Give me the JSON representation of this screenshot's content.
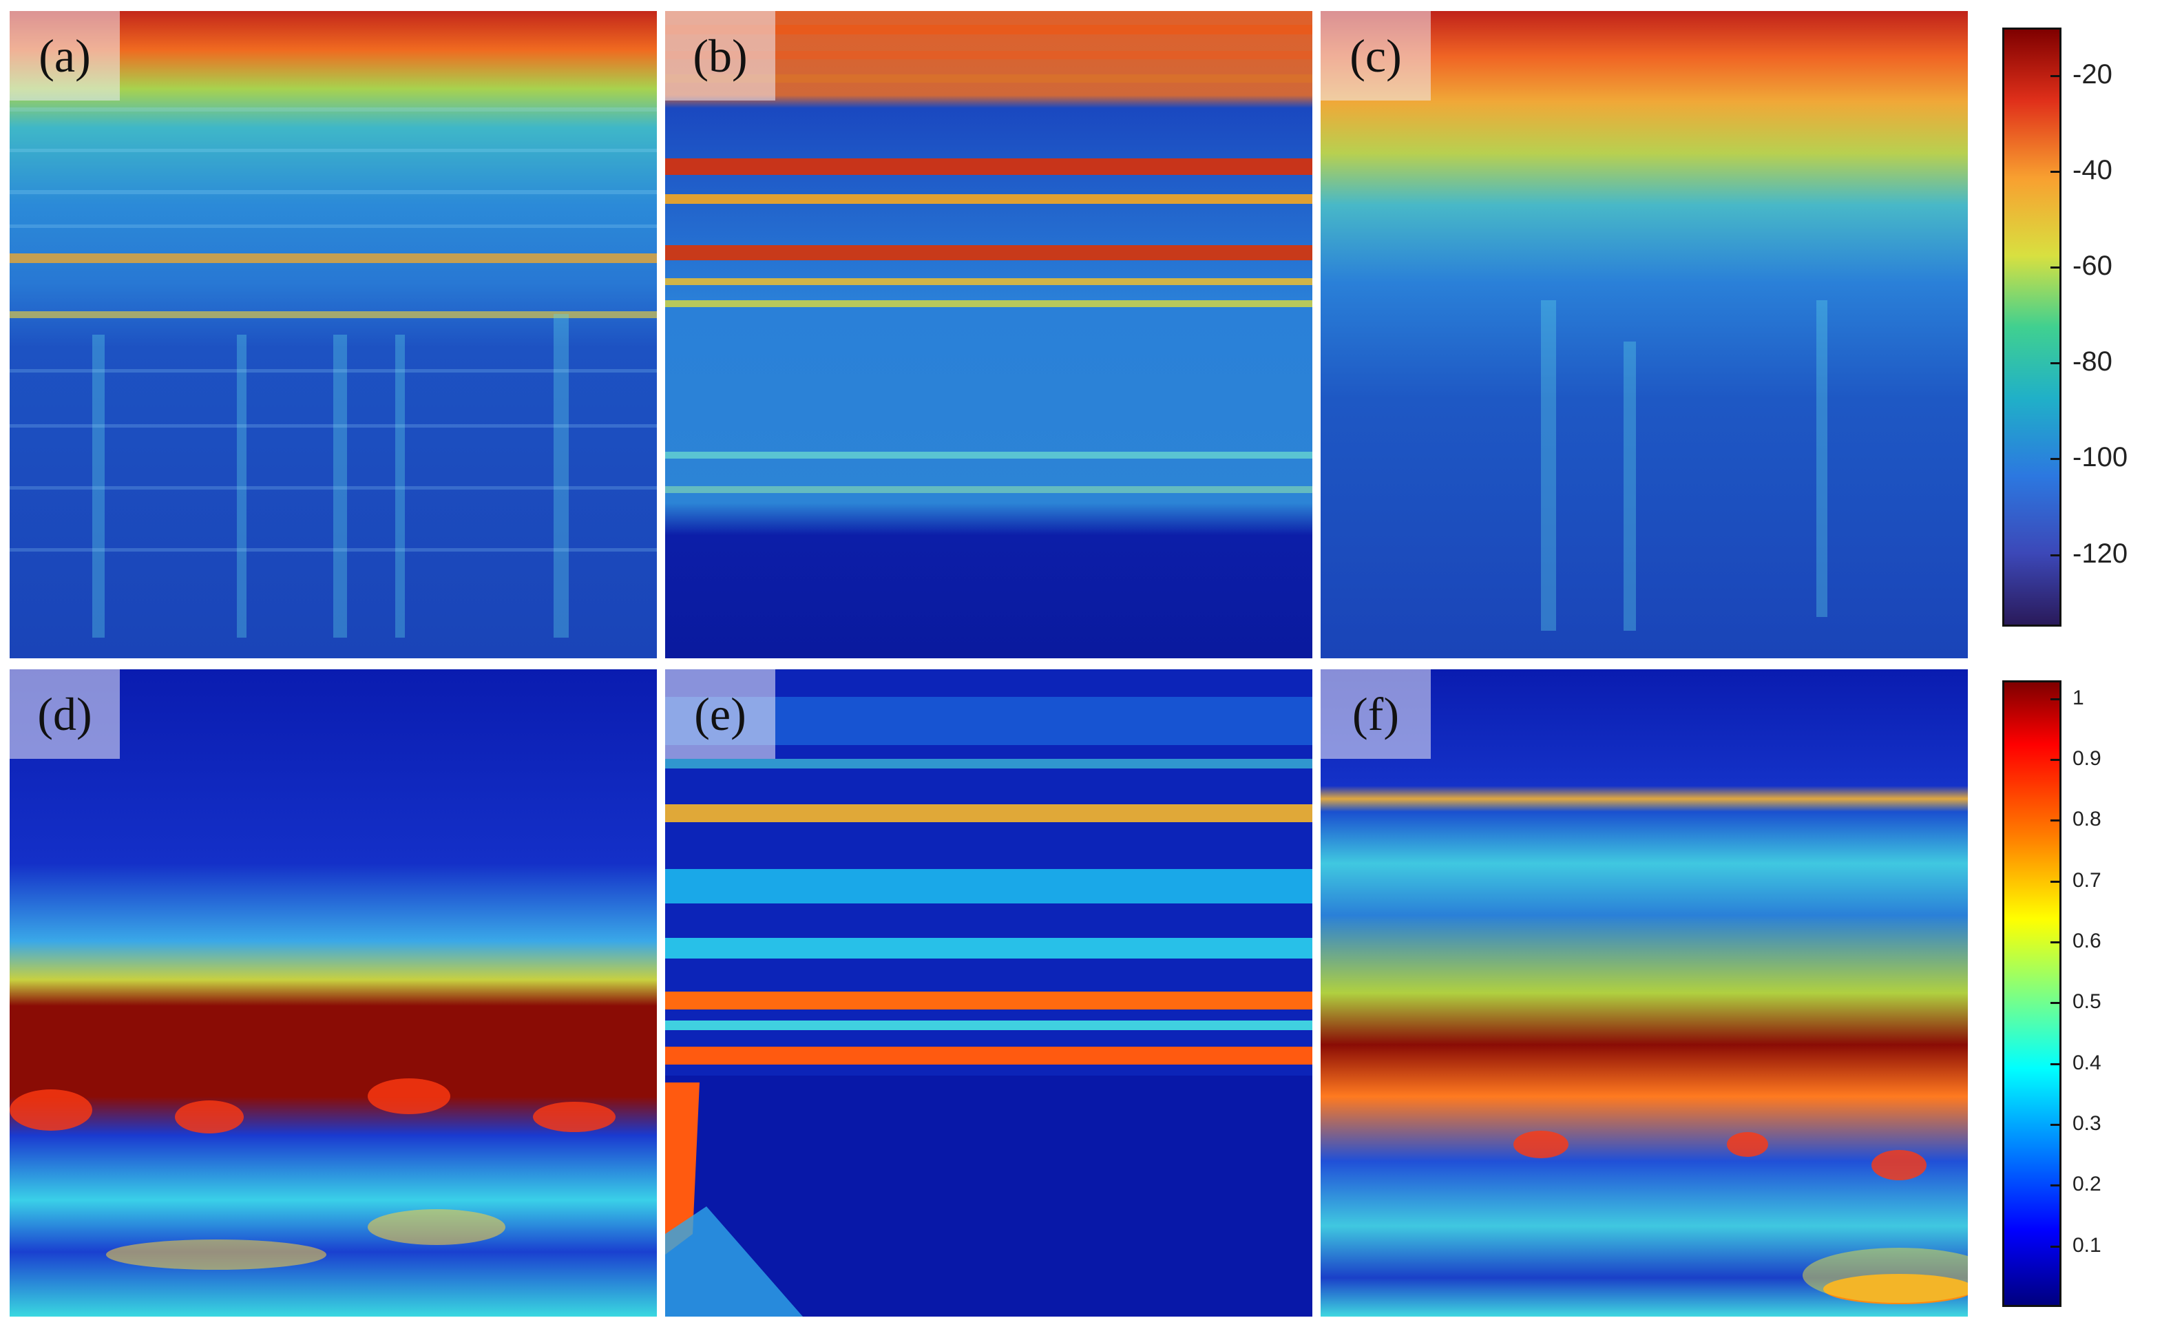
{
  "panels": [
    {
      "id": "a",
      "label": "(a)",
      "kind": "spectrogram"
    },
    {
      "id": "b",
      "label": "(b)",
      "kind": "spectrogram"
    },
    {
      "id": "c",
      "label": "(c)",
      "kind": "spectrogram"
    },
    {
      "id": "d",
      "label": "(d)",
      "kind": "scalogram"
    },
    {
      "id": "e",
      "label": "(e)",
      "kind": "scalogram"
    },
    {
      "id": "f",
      "label": "(f)",
      "kind": "scalogram"
    }
  ],
  "colorbar_top": {
    "range": [
      -135,
      -10
    ],
    "ticks": [
      "-20",
      "-40",
      "-60",
      "-80",
      "-100",
      "-120"
    ],
    "tick_values": [
      -20,
      -40,
      -60,
      -80,
      -100,
      -120
    ]
  },
  "colorbar_bottom": {
    "range": [
      0,
      1.03
    ],
    "ticks": [
      "1",
      "0.9",
      "0.8",
      "0.7",
      "0.6",
      "0.5",
      "0.4",
      "0.3",
      "0.2",
      "0.1"
    ],
    "tick_values": [
      1,
      0.9,
      0.8,
      0.7,
      0.6,
      0.5,
      0.4,
      0.3,
      0.2,
      0.1
    ]
  },
  "colormap": "jet",
  "colors": {
    "jet": [
      "#00007f",
      "#0000ff",
      "#007fff",
      "#00ffff",
      "#7fff7f",
      "#ffff00",
      "#ff7f00",
      "#ff0000",
      "#7f0000"
    ],
    "spectro_top": "#c0261a",
    "spectro_mid": "#2a7fd8",
    "spectro_low": "#1238a8",
    "scalo_bg": "#0a1fb8",
    "hot_band": "#8a0c05"
  }
}
